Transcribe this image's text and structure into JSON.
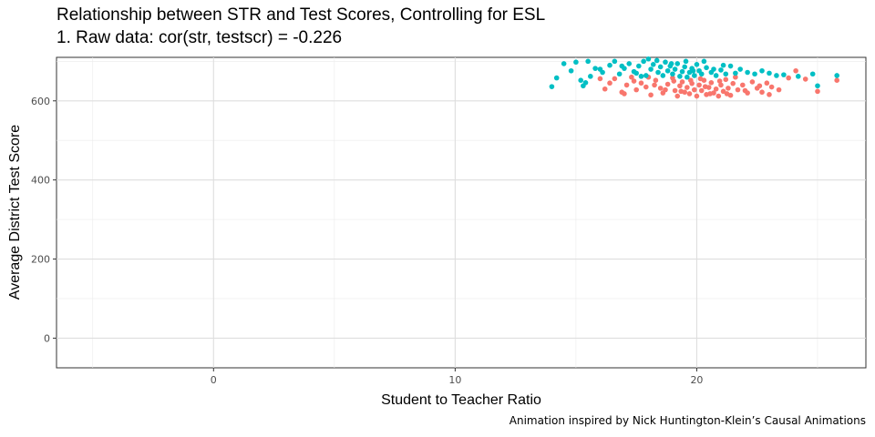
{
  "chart_data": {
    "type": "scatter",
    "title": "Relationship between STR and Test Scores, Controlling for ESL",
    "subtitle": "1. Raw data: cor(str, testscr) = -0.226",
    "xlabel": "Student to Teacher Ratio",
    "ylabel": "Average District Test Score",
    "caption": "Animation inspired by Nick Huntington-Klein’s Causal Animations",
    "xlim": [
      -6.5,
      27
    ],
    "ylim": [
      -75,
      710
    ],
    "x_ticks": [
      0,
      10,
      20
    ],
    "y_ticks": [
      0,
      200,
      400,
      600
    ],
    "grid": true,
    "series": [
      {
        "color": "#F8766D",
        "points": [
          [
            16.2,
            630
          ],
          [
            16.4,
            645
          ],
          [
            16.6,
            656
          ],
          [
            16.9,
            622
          ],
          [
            17.1,
            640
          ],
          [
            17.3,
            660
          ],
          [
            17.5,
            628
          ],
          [
            17.7,
            645
          ],
          [
            17.9,
            635
          ],
          [
            18.1,
            615
          ],
          [
            18.3,
            652
          ],
          [
            18.5,
            632
          ],
          [
            18.6,
            620
          ],
          [
            18.8,
            642
          ],
          [
            19.0,
            658
          ],
          [
            19.1,
            626
          ],
          [
            19.2,
            612
          ],
          [
            19.3,
            638
          ],
          [
            19.4,
            648
          ],
          [
            19.5,
            622
          ],
          [
            19.6,
            634
          ],
          [
            19.7,
            618
          ],
          [
            19.8,
            644
          ],
          [
            19.9,
            628
          ],
          [
            20.0,
            612
          ],
          [
            20.1,
            640
          ],
          [
            20.2,
            626
          ],
          [
            20.3,
            652
          ],
          [
            20.4,
            616
          ],
          [
            20.5,
            634
          ],
          [
            20.6,
            646
          ],
          [
            20.7,
            620
          ],
          [
            20.8,
            630
          ],
          [
            20.9,
            612
          ],
          [
            21.0,
            640
          ],
          [
            21.1,
            624
          ],
          [
            21.2,
            654
          ],
          [
            21.3,
            632
          ],
          [
            21.4,
            614
          ],
          [
            21.5,
            644
          ],
          [
            21.7,
            628
          ],
          [
            21.9,
            640
          ],
          [
            22.1,
            620
          ],
          [
            22.3,
            648
          ],
          [
            22.5,
            632
          ],
          [
            22.7,
            622
          ],
          [
            22.9,
            645
          ],
          [
            23.1,
            635
          ],
          [
            23.4,
            628
          ],
          [
            23.8,
            658
          ],
          [
            24.1,
            676
          ],
          [
            24.5,
            655
          ],
          [
            25.0,
            624
          ],
          [
            25.8,
            652
          ],
          [
            17.0,
            618
          ],
          [
            18.0,
            660
          ],
          [
            19.05,
            650
          ],
          [
            20.15,
            656
          ],
          [
            21.6,
            660
          ],
          [
            22.0,
            626
          ],
          [
            18.7,
            628
          ],
          [
            19.35,
            624
          ],
          [
            20.55,
            618
          ],
          [
            16.0,
            656
          ],
          [
            20.95,
            650
          ],
          [
            19.75,
            652
          ],
          [
            18.25,
            640
          ],
          [
            21.25,
            618
          ],
          [
            22.6,
            638
          ],
          [
            23.0,
            616
          ],
          [
            17.4,
            650
          ],
          [
            20.35,
            636
          ]
        ]
      },
      {
        "color": "#00BFC4",
        "points": [
          [
            14.0,
            636
          ],
          [
            14.2,
            658
          ],
          [
            14.5,
            694
          ],
          [
            14.8,
            676
          ],
          [
            15.0,
            698
          ],
          [
            15.2,
            652
          ],
          [
            15.3,
            638
          ],
          [
            15.5,
            700
          ],
          [
            15.6,
            662
          ],
          [
            15.8,
            682
          ],
          [
            16.1,
            672
          ],
          [
            16.4,
            690
          ],
          [
            16.6,
            700
          ],
          [
            16.8,
            668
          ],
          [
            17.0,
            682
          ],
          [
            17.2,
            694
          ],
          [
            17.4,
            674
          ],
          [
            17.6,
            688
          ],
          [
            17.8,
            700
          ],
          [
            17.9,
            664
          ],
          [
            18.0,
            706
          ],
          [
            18.1,
            680
          ],
          [
            18.2,
            692
          ],
          [
            18.4,
            672
          ],
          [
            18.5,
            686
          ],
          [
            18.6,
            664
          ],
          [
            18.7,
            698
          ],
          [
            18.8,
            676
          ],
          [
            18.9,
            688
          ],
          [
            19.0,
            668
          ],
          [
            19.1,
            680
          ],
          [
            19.2,
            694
          ],
          [
            19.3,
            662
          ],
          [
            19.4,
            674
          ],
          [
            19.5,
            686
          ],
          [
            19.6,
            660
          ],
          [
            19.7,
            672
          ],
          [
            19.8,
            682
          ],
          [
            19.9,
            664
          ],
          [
            20.0,
            692
          ],
          [
            20.1,
            676
          ],
          [
            20.2,
            668
          ],
          [
            20.4,
            684
          ],
          [
            20.6,
            672
          ],
          [
            20.8,
            664
          ],
          [
            21.0,
            678
          ],
          [
            21.2,
            668
          ],
          [
            21.4,
            688
          ],
          [
            21.6,
            670
          ],
          [
            21.8,
            680
          ],
          [
            22.1,
            672
          ],
          [
            22.4,
            668
          ],
          [
            22.7,
            676
          ],
          [
            23.0,
            670
          ],
          [
            23.3,
            664
          ],
          [
            23.6,
            666
          ],
          [
            24.2,
            662
          ],
          [
            24.8,
            668
          ],
          [
            25.0,
            638
          ],
          [
            25.8,
            664
          ],
          [
            16.0,
            680
          ],
          [
            17.5,
            670
          ],
          [
            18.35,
            702
          ],
          [
            19.55,
            700
          ],
          [
            20.3,
            700
          ],
          [
            21.1,
            690
          ],
          [
            19.85,
            676
          ],
          [
            18.95,
            694
          ],
          [
            17.7,
            662
          ],
          [
            15.4,
            646
          ],
          [
            16.9,
            688
          ],
          [
            20.7,
            680
          ]
        ]
      }
    ]
  }
}
